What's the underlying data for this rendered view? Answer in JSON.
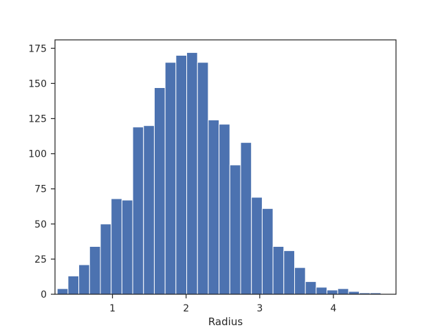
{
  "chart_data": {
    "type": "bar",
    "title": "",
    "xlabel": "Radius",
    "ylabel": "",
    "xlim": [
      0.22,
      4.85
    ],
    "ylim": [
      0,
      181
    ],
    "xticks": [
      1,
      2,
      3,
      4
    ],
    "yticks": [
      0,
      25,
      50,
      75,
      100,
      125,
      150,
      175
    ],
    "grid": false,
    "bar_color": "#4c72b0",
    "bin_edges": [
      0.25,
      0.3965,
      0.543,
      0.6895,
      0.836,
      0.9825,
      1.129,
      1.2755,
      1.422,
      1.5685,
      1.715,
      1.8615,
      2.008,
      2.1545,
      2.301,
      2.4475,
      2.594,
      2.7405,
      2.887,
      3.0335,
      3.18,
      3.3265,
      3.473,
      3.6195,
      3.766,
      3.9125,
      4.059,
      4.2055,
      4.352,
      4.4985,
      4.645
    ],
    "values": [
      4,
      13,
      21,
      34,
      50,
      68,
      67,
      119,
      120,
      147,
      165,
      170,
      172,
      165,
      124,
      121,
      92,
      108,
      69,
      61,
      34,
      31,
      19,
      9,
      5,
      3,
      4,
      2,
      1,
      1
    ]
  }
}
